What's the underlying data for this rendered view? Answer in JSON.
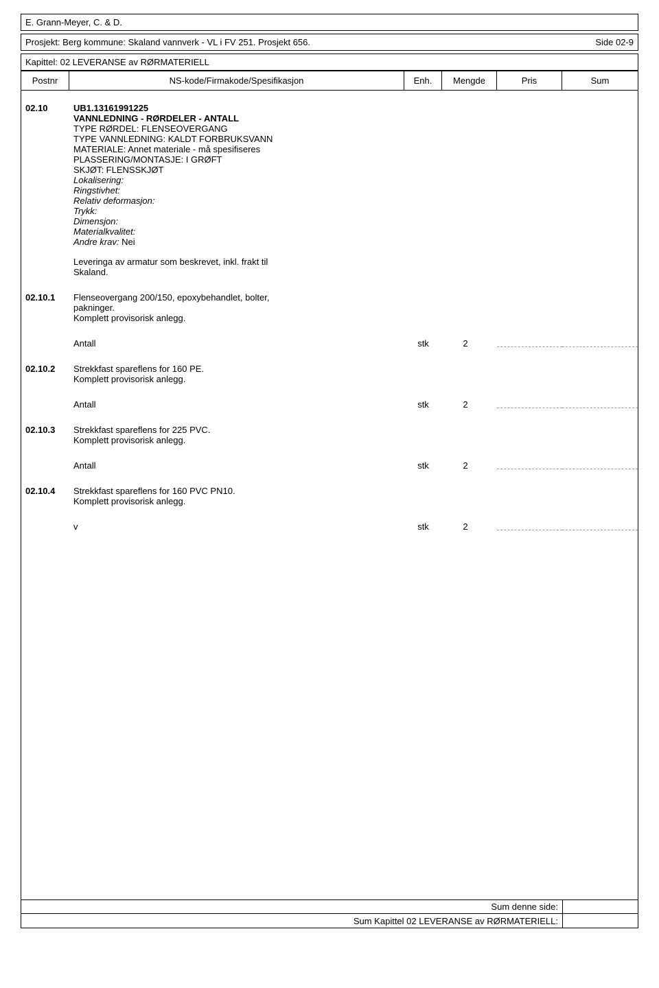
{
  "header": {
    "author": "E. Grann-Meyer, C. & D.",
    "project": "Prosjekt: Berg kommune: Skaland vannverk - VL i FV 251. Prosjekt 656.",
    "page": "Side 02-9",
    "chapter": "Kapittel: 02 LEVERANSE av RØRMATERIELL"
  },
  "columns": {
    "postnr": "Postnr",
    "spec": "NS-kode/Firmakode/Spesifikasjon",
    "enh": "Enh.",
    "mengde": "Mengde",
    "pris": "Pris",
    "sum": "Sum"
  },
  "items": {
    "main": {
      "postnr": "02.10",
      "code": "UB1.13161991225",
      "title": "VANNLEDNING - RØRDELER - ANTALL",
      "line1": "TYPE RØRDEL: FLENSEOVERGANG",
      "line2": "TYPE VANNLEDNING: KALDT FORBRUKSVANN",
      "line3": "MATERIALE: Annet materiale - må spesifiseres",
      "line4": "PLASSERING/MONTASJE: I GRØFT",
      "line5": "SKJØT: FLENSSKJØT",
      "italic1": "Lokalisering:",
      "italic2": "Ringstivhet:",
      "italic3": "Relativ deformasjon:",
      "italic4": "Trykk:",
      "italic5": "Dimensjon:",
      "italic6": "Materialkvalitet:",
      "italic7_label": "Andre krav:",
      "italic7_value": " Nei",
      "delivery1": "Leveringa av armatur som beskrevet, inkl. frakt til",
      "delivery2": "Skaland."
    },
    "s1": {
      "postnr": "02.10.1",
      "desc1": "Flenseovergang 200/150, epoxybehandlet, bolter,",
      "desc2": "pakninger.",
      "desc3": "Komplett provisorisk anlegg.",
      "qty_label": "Antall",
      "enh": "stk",
      "mengde": "2"
    },
    "s2": {
      "postnr": "02.10.2",
      "desc1": "Strekkfast spareflens for 160 PE.",
      "desc2": "Komplett provisorisk anlegg.",
      "qty_label": "Antall",
      "enh": "stk",
      "mengde": "2"
    },
    "s3": {
      "postnr": "02.10.3",
      "desc1": "Strekkfast spareflens for 225 PVC.",
      "desc2": "Komplett provisorisk anlegg.",
      "qty_label": "Antall",
      "enh": "stk",
      "mengde": "2"
    },
    "s4": {
      "postnr": "02.10.4",
      "desc1": "Strekkfast spareflens for 160 PVC PN10.",
      "desc2": "Komplett provisorisk anlegg.",
      "qty_label": "v",
      "enh": "stk",
      "mengde": "2"
    }
  },
  "footer": {
    "line1": "Sum denne side:",
    "line2": "Sum Kapittel 02 LEVERANSE av RØRMATERIELL:"
  }
}
